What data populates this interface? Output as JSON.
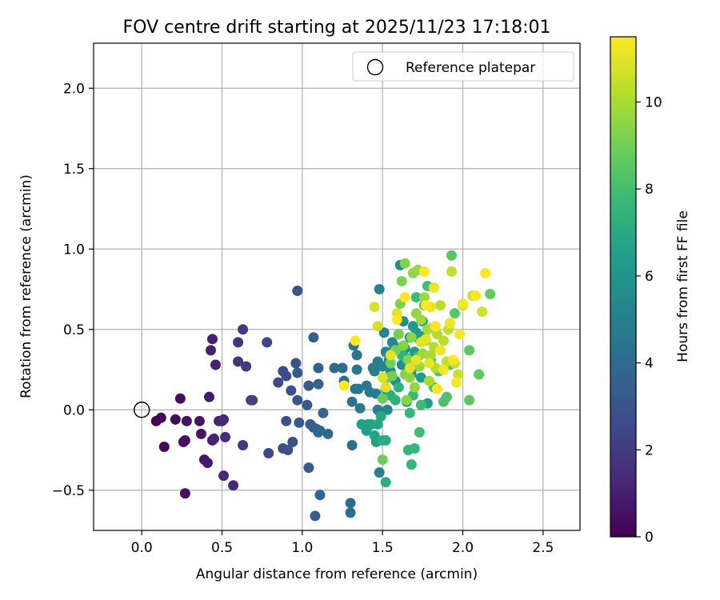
{
  "chart_data": {
    "type": "scatter",
    "title": "FOV centre drift starting at 2025/11/23 17:18:01",
    "xlabel": "Angular distance from reference (arcmin)",
    "ylabel": "Rotation from reference (arcmin)",
    "xlim": [
      -0.3,
      2.73
    ],
    "ylim": [
      -0.75,
      2.28
    ],
    "x_ticks": [
      0.0,
      0.5,
      1.0,
      1.5,
      2.0,
      2.5
    ],
    "x_tick_labels": [
      "0.0",
      "0.5",
      "1.0",
      "1.5",
      "2.0",
      "2.5"
    ],
    "y_ticks": [
      -0.5,
      0.0,
      0.5,
      1.0,
      1.5,
      2.0
    ],
    "y_tick_labels": [
      "−0.5",
      "0.0",
      "0.5",
      "1.0",
      "1.5",
      "2.0"
    ],
    "grid": true,
    "legend": {
      "position": "top-right",
      "entries": [
        {
          "label": "Reference platepar",
          "marker": "open-circle"
        }
      ]
    },
    "reference_point": {
      "label": "Reference platepar",
      "x": 0.0,
      "y": 0.0
    },
    "colorbar": {
      "label": "Hours from first FF file",
      "colormap": "viridis",
      "range": [
        0,
        11.5
      ],
      "ticks": [
        0,
        2,
        4,
        6,
        8,
        10
      ],
      "tick_labels": [
        "0",
        "2",
        "4",
        "6",
        "8",
        "10"
      ]
    },
    "series": [
      {
        "points": [
          [
            0.09,
            -0.07,
            0.1
          ],
          [
            0.12,
            -0.05,
            0.2
          ],
          [
            0.14,
            -0.23,
            0.3
          ],
          [
            0.21,
            -0.06,
            0.3
          ],
          [
            0.24,
            0.07,
            0.4
          ],
          [
            0.26,
            -0.2,
            0.4
          ],
          [
            0.27,
            -0.19,
            0.5
          ],
          [
            0.27,
            -0.52,
            0.5
          ],
          [
            0.28,
            -0.07,
            0.6
          ],
          [
            0.36,
            -0.07,
            0.6
          ],
          [
            0.37,
            -0.15,
            0.7
          ],
          [
            0.39,
            -0.31,
            0.7
          ],
          [
            0.41,
            -0.33,
            0.8
          ],
          [
            0.42,
            0.08,
            0.8
          ],
          [
            0.43,
            0.37,
            1.0
          ],
          [
            0.44,
            0.44,
            1.0
          ],
          [
            0.44,
            -0.19,
            1.0
          ],
          [
            0.45,
            -0.18,
            1.1
          ],
          [
            0.46,
            0.28,
            1.1
          ],
          [
            0.48,
            -0.07,
            1.2
          ],
          [
            0.5,
            -0.07,
            1.2
          ],
          [
            0.51,
            -0.06,
            1.3
          ],
          [
            0.51,
            -0.41,
            1.3
          ],
          [
            0.57,
            -0.47,
            1.4
          ],
          [
            0.52,
            -0.17,
            1.5
          ],
          [
            0.6,
            0.42,
            1.7
          ],
          [
            0.6,
            0.3,
            1.8
          ],
          [
            0.63,
            0.5,
            1.9
          ],
          [
            0.63,
            -0.22,
            1.9
          ],
          [
            0.65,
            0.27,
            2.0
          ],
          [
            0.68,
            0.06,
            2.1
          ],
          [
            0.69,
            0.06,
            2.2
          ],
          [
            0.78,
            0.42,
            2.4
          ],
          [
            0.79,
            -0.27,
            2.5
          ],
          [
            0.85,
            0.17,
            2.6
          ],
          [
            0.88,
            0.24,
            2.6
          ],
          [
            0.88,
            -0.24,
            2.7
          ],
          [
            0.9,
            0.21,
            2.7
          ],
          [
            0.9,
            -0.07,
            2.8
          ],
          [
            0.91,
            -0.25,
            2.8
          ],
          [
            0.93,
            0.12,
            2.9
          ],
          [
            0.94,
            -0.2,
            2.9
          ],
          [
            0.96,
            0.29,
            3.0
          ],
          [
            0.97,
            0.74,
            3.0
          ],
          [
            0.97,
            0.23,
            3.1
          ],
          [
            0.97,
            0.06,
            3.1
          ],
          [
            0.98,
            -0.08,
            3.2
          ],
          [
            1.03,
            0.03,
            3.2
          ],
          [
            1.04,
            0.15,
            3.3
          ],
          [
            1.04,
            -0.36,
            3.3
          ],
          [
            1.05,
            -0.09,
            3.4
          ],
          [
            1.07,
            0.45,
            3.4
          ],
          [
            1.07,
            -0.11,
            3.5
          ],
          [
            1.08,
            -0.66,
            3.5
          ],
          [
            1.09,
            -0.12,
            3.6
          ],
          [
            1.1,
            0.26,
            3.6
          ],
          [
            1.1,
            0.16,
            3.7
          ],
          [
            1.1,
            -0.14,
            3.7
          ],
          [
            1.11,
            -0.13,
            3.8
          ],
          [
            1.11,
            -0.53,
            3.8
          ],
          [
            1.13,
            -0.02,
            3.9
          ],
          [
            1.16,
            -0.15,
            3.9
          ],
          [
            1.2,
            0.26,
            4.0
          ],
          [
            1.25,
            0.26,
            4.0
          ],
          [
            1.26,
            0.18,
            4.1
          ],
          [
            1.3,
            -0.58,
            4.1
          ],
          [
            1.3,
            -0.64,
            4.2
          ],
          [
            1.31,
            -0.22,
            4.2
          ],
          [
            1.31,
            0.05,
            4.3
          ],
          [
            1.32,
            0.4,
            4.3
          ],
          [
            1.33,
            0.13,
            4.4
          ],
          [
            1.34,
            0.34,
            4.4
          ],
          [
            1.34,
            0.25,
            4.5
          ],
          [
            1.35,
            0.13,
            4.5
          ],
          [
            1.36,
            0.01,
            4.6
          ],
          [
            1.4,
            0.15,
            4.6
          ],
          [
            1.42,
            0.11,
            4.7
          ],
          [
            1.44,
            0.26,
            4.7
          ],
          [
            1.45,
            0.24,
            4.8
          ],
          [
            1.46,
            0.1,
            4.8
          ],
          [
            1.47,
            0.3,
            4.9
          ],
          [
            1.47,
            0.0,
            4.9
          ],
          [
            1.48,
            0.75,
            5.0
          ],
          [
            1.48,
            -0.39,
            5.0
          ],
          [
            1.5,
            0.27,
            5.1
          ],
          [
            1.51,
            0.48,
            5.1
          ],
          [
            1.52,
            0.36,
            5.2
          ],
          [
            1.52,
            0.13,
            5.2
          ],
          [
            1.53,
            0.0,
            5.3
          ],
          [
            1.54,
            0.31,
            5.3
          ],
          [
            1.55,
            0.24,
            5.4
          ],
          [
            1.56,
            0.42,
            5.4
          ],
          [
            1.57,
            0.4,
            5.5
          ],
          [
            1.58,
            0.18,
            5.5
          ],
          [
            1.6,
            0.47,
            5.6
          ],
          [
            1.61,
            0.9,
            5.6
          ],
          [
            1.62,
            0.28,
            5.7
          ],
          [
            1.63,
            0.55,
            5.7
          ],
          [
            1.64,
            0.38,
            5.8
          ],
          [
            1.65,
            0.05,
            5.8
          ],
          [
            1.66,
            0.3,
            5.9
          ],
          [
            1.67,
            0.45,
            5.9
          ],
          [
            1.68,
            0.22,
            6.0
          ],
          [
            1.69,
            0.52,
            6.0
          ],
          [
            1.7,
            0.36,
            6.1
          ],
          [
            1.71,
            0.48,
            6.1
          ],
          [
            1.72,
            0.27,
            6.2
          ],
          [
            1.73,
            0.44,
            6.2
          ],
          [
            1.74,
            0.2,
            6.3
          ],
          [
            1.75,
            0.55,
            6.3
          ],
          [
            1.76,
            0.46,
            6.4
          ],
          [
            1.78,
            0.04,
            6.4
          ],
          [
            1.37,
            -0.09,
            6.5
          ],
          [
            1.4,
            -0.13,
            6.5
          ],
          [
            1.41,
            -0.09,
            6.6
          ],
          [
            1.43,
            -0.09,
            6.6
          ],
          [
            1.45,
            -0.16,
            6.7
          ],
          [
            1.46,
            -0.2,
            6.7
          ],
          [
            1.47,
            -0.09,
            6.8
          ],
          [
            1.49,
            -0.04,
            6.9
          ],
          [
            1.5,
            -0.19,
            7.0
          ],
          [
            1.52,
            -0.19,
            7.1
          ],
          [
            1.52,
            -0.45,
            7.2
          ],
          [
            1.55,
            0.09,
            7.2
          ],
          [
            1.58,
            0.06,
            7.3
          ],
          [
            1.6,
            0.14,
            7.4
          ],
          [
            1.62,
            0.34,
            7.4
          ],
          [
            1.65,
            0.32,
            7.5
          ],
          [
            1.66,
            -0.25,
            7.5
          ],
          [
            1.67,
            -0.02,
            7.6
          ],
          [
            1.68,
            -0.34,
            7.6
          ],
          [
            1.69,
            0.09,
            7.7
          ],
          [
            1.7,
            -0.24,
            7.7
          ],
          [
            1.71,
            0.7,
            7.8
          ],
          [
            1.72,
            0.33,
            7.8
          ],
          [
            1.73,
            -0.14,
            7.9
          ],
          [
            1.74,
            0.03,
            7.9
          ],
          [
            1.76,
            0.65,
            8.0
          ],
          [
            1.78,
            0.77,
            8.0
          ],
          [
            1.8,
            0.31,
            8.1
          ],
          [
            1.82,
            0.14,
            8.1
          ],
          [
            1.85,
            0.24,
            8.2
          ],
          [
            1.88,
            0.05,
            8.2
          ],
          [
            1.9,
            0.08,
            8.3
          ],
          [
            1.92,
            0.28,
            8.4
          ],
          [
            1.93,
            0.96,
            8.5
          ],
          [
            1.95,
            0.6,
            8.5
          ],
          [
            2.04,
            0.37,
            8.6
          ],
          [
            2.04,
            0.06,
            8.6
          ],
          [
            2.1,
            0.22,
            8.7
          ],
          [
            2.17,
            0.72,
            8.7
          ],
          [
            1.5,
            0.07,
            8.8
          ],
          [
            1.5,
            -0.31,
            8.9
          ],
          [
            1.53,
            0.2,
            8.9
          ],
          [
            1.55,
            0.29,
            9.0
          ],
          [
            1.56,
            0.21,
            9.0
          ],
          [
            1.58,
            0.37,
            9.1
          ],
          [
            1.6,
            0.47,
            9.1
          ],
          [
            1.61,
            0.66,
            9.2
          ],
          [
            1.62,
            0.8,
            9.2
          ],
          [
            1.63,
            0.4,
            9.3
          ],
          [
            1.64,
            0.22,
            9.3
          ],
          [
            1.64,
            0.91,
            9.3
          ],
          [
            1.65,
            0.06,
            9.4
          ],
          [
            1.66,
            0.31,
            9.4
          ],
          [
            1.67,
            0.2,
            9.5
          ],
          [
            1.68,
            0.45,
            9.5
          ],
          [
            1.69,
            0.85,
            9.5
          ],
          [
            1.7,
            0.14,
            9.6
          ],
          [
            1.71,
            0.6,
            9.6
          ],
          [
            1.72,
            0.87,
            9.7
          ],
          [
            1.73,
            0.27,
            9.7
          ],
          [
            1.74,
            0.56,
            9.8
          ],
          [
            1.75,
            0.35,
            9.8
          ],
          [
            1.76,
            0.7,
            9.8
          ],
          [
            1.77,
            0.43,
            9.9
          ],
          [
            1.78,
            0.5,
            9.9
          ],
          [
            1.79,
            0.18,
            10.0
          ],
          [
            1.8,
            0.34,
            10.0
          ],
          [
            1.81,
            0.51,
            10.1
          ],
          [
            1.82,
            0.39,
            10.1
          ],
          [
            1.83,
            0.26,
            10.2
          ],
          [
            1.84,
            0.47,
            10.2
          ],
          [
            1.86,
            0.65,
            10.3
          ],
          [
            1.88,
            0.43,
            10.3
          ],
          [
            1.9,
            0.3,
            10.4
          ],
          [
            1.91,
            0.5,
            10.4
          ],
          [
            1.93,
            0.86,
            10.5
          ],
          [
            1.95,
            0.29,
            10.5
          ],
          [
            1.97,
            0.22,
            10.6
          ],
          [
            2.0,
            0.65,
            10.6
          ],
          [
            2.06,
            0.71,
            10.7
          ],
          [
            2.12,
            0.61,
            10.7
          ],
          [
            1.45,
            0.64,
            10.8
          ],
          [
            1.47,
            0.52,
            10.8
          ],
          [
            1.5,
            0.2,
            10.9
          ],
          [
            1.52,
            0.14,
            10.9
          ],
          [
            1.55,
            0.34,
            11.0
          ],
          [
            1.59,
            0.6,
            11.0
          ],
          [
            1.67,
            0.26,
            11.0
          ],
          [
            1.71,
            0.31,
            11.1
          ],
          [
            1.74,
            0.42,
            11.1
          ],
          [
            1.77,
            0.44,
            11.1
          ],
          [
            1.79,
            0.29,
            11.2
          ],
          [
            1.8,
            0.64,
            11.2
          ],
          [
            1.82,
            0.76,
            11.2
          ],
          [
            1.84,
            0.13,
            11.3
          ],
          [
            1.86,
            0.37,
            11.3
          ],
          [
            1.88,
            0.25,
            11.3
          ],
          [
            1.92,
            0.54,
            11.3
          ],
          [
            1.94,
            0.31,
            11.4
          ],
          [
            1.96,
            0.17,
            11.4
          ],
          [
            1.98,
            0.47,
            11.4
          ],
          [
            2.0,
            0.66,
            11.4
          ],
          [
            2.08,
            0.71,
            11.5
          ],
          [
            2.14,
            0.85,
            11.5
          ],
          [
            1.33,
            0.43,
            11.5
          ],
          [
            1.26,
            0.15,
            11.5
          ],
          [
            1.77,
            0.65,
            11.5
          ],
          [
            1.64,
            0.7,
            11.5
          ],
          [
            1.76,
            0.86,
            11.5
          ],
          [
            1.59,
            0.56,
            11.5
          ],
          [
            1.83,
            0.52,
            11.5
          ]
        ]
      }
    ]
  }
}
